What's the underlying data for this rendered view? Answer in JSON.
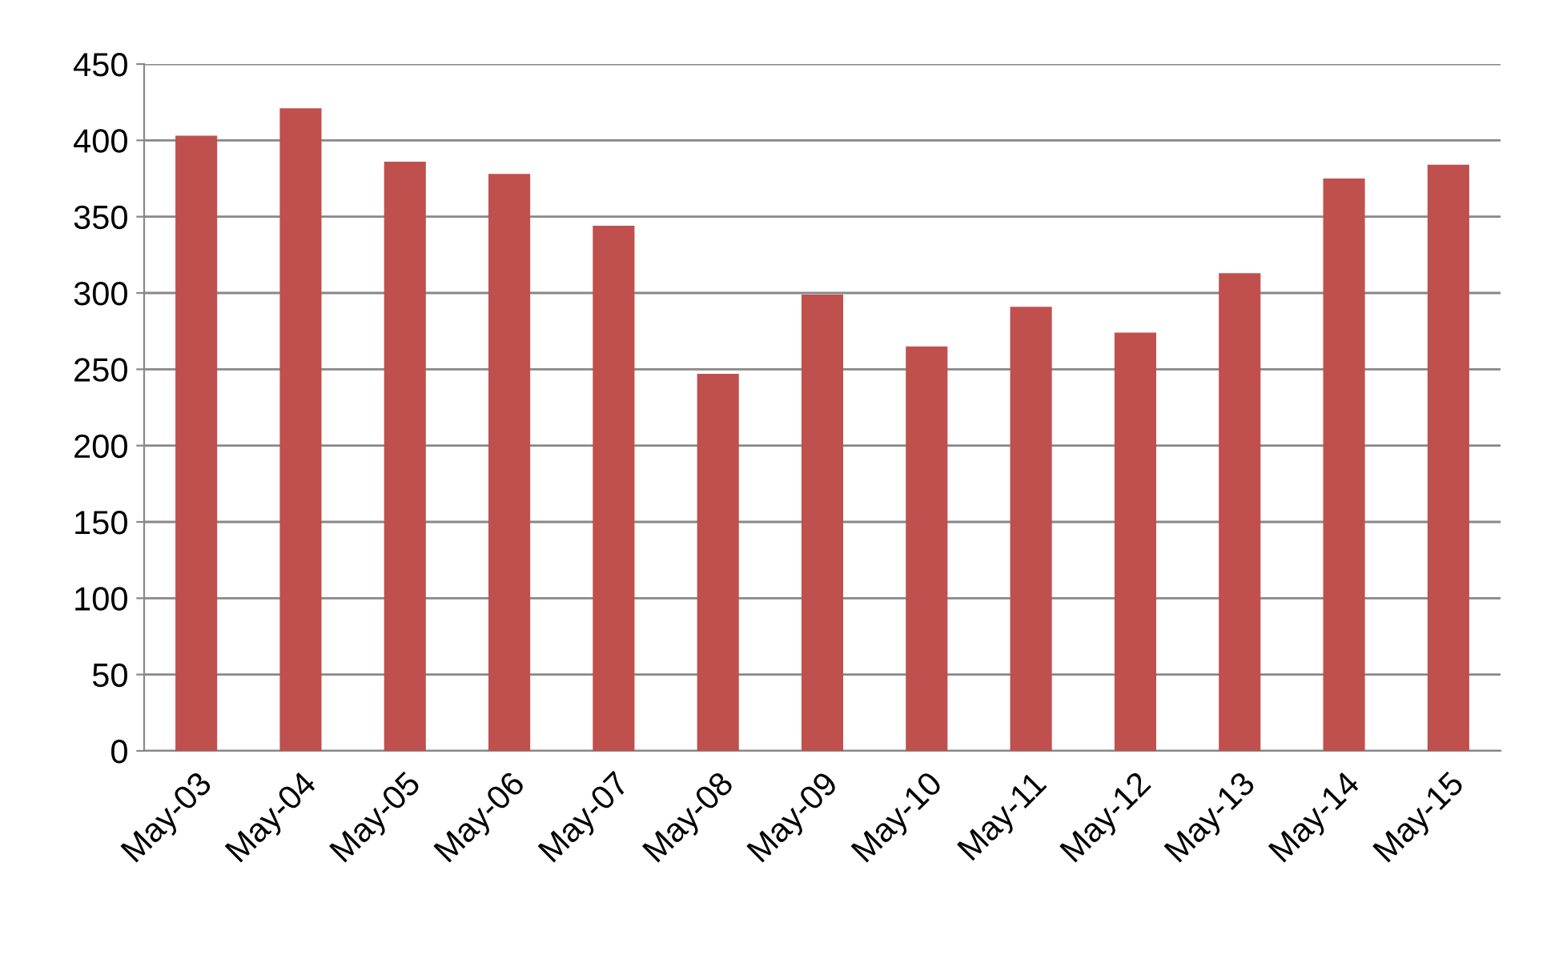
{
  "chart_data": {
    "type": "bar",
    "categories": [
      "May-03",
      "May-04",
      "May-05",
      "May-06",
      "May-07",
      "May-08",
      "May-09",
      "May-10",
      "May-11",
      "May-12",
      "May-13",
      "May-14",
      "May-15"
    ],
    "values": [
      403,
      421,
      386,
      378,
      344,
      247,
      299,
      265,
      291,
      274,
      313,
      375,
      384
    ],
    "color": "#c0504d",
    "ylim": [
      0,
      450
    ],
    "yticks": [
      0,
      50,
      100,
      150,
      200,
      250,
      300,
      350,
      400,
      450
    ],
    "grid": "y"
  }
}
